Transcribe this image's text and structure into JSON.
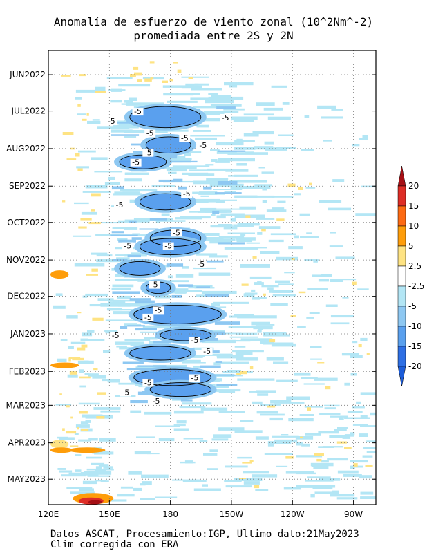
{
  "title_line1": "Anomalía de esfuerzo de viento zonal (10^2Nm^-2)",
  "title_line2": "promediada entre 2S y 2N",
  "footer_line1": "Datos ASCAT, Procesamiento:IGP, Ultimo dato:21May2023",
  "footer_line2": "Clim corregida con ERA",
  "chart_data": {
    "type": "heatmap",
    "x_ticks": [
      "120E",
      "150E",
      "180",
      "150W",
      "120W",
      "90W"
    ],
    "x_tick_lon": [
      120,
      150,
      180,
      210,
      240,
      270
    ],
    "xlim": [
      120,
      281
    ],
    "y_ticks": [
      "JUN2022",
      "JUL2022",
      "AUG2022",
      "SEP2022",
      "OCT2022",
      "NOV2022",
      "DEC2022",
      "JAN2023",
      "FEB2023",
      "MAR2023",
      "APR2023",
      "MAY2023"
    ],
    "y_tick_day": [
      20,
      50,
      81,
      112,
      142,
      173,
      203,
      234,
      265,
      293,
      324,
      354
    ],
    "ylim": [
      0,
      375
    ],
    "grid": true,
    "contour_level": -5,
    "contour_labels": [
      {
        "text": "-5",
        "lon": 164,
        "day": 52
      },
      {
        "text": "-5",
        "lon": 151,
        "day": 60
      },
      {
        "text": "-5",
        "lon": 207,
        "day": 57
      },
      {
        "text": "-5",
        "lon": 170,
        "day": 70
      },
      {
        "text": "-5",
        "lon": 187,
        "day": 74
      },
      {
        "text": "-5",
        "lon": 196,
        "day": 80
      },
      {
        "text": "-5",
        "lon": 169,
        "day": 86
      },
      {
        "text": "-5",
        "lon": 163,
        "day": 94
      },
      {
        "text": "-5",
        "lon": 188,
        "day": 120
      },
      {
        "text": "-5",
        "lon": 155,
        "day": 129
      },
      {
        "text": "-5",
        "lon": 183,
        "day": 152
      },
      {
        "text": "-5",
        "lon": 159,
        "day": 163
      },
      {
        "text": "-5",
        "lon": 179,
        "day": 163
      },
      {
        "text": "-5",
        "lon": 195,
        "day": 178
      },
      {
        "text": "-5",
        "lon": 172,
        "day": 195
      },
      {
        "text": "-5",
        "lon": 174,
        "day": 216
      },
      {
        "text": "-5",
        "lon": 169,
        "day": 222
      },
      {
        "text": "-5",
        "lon": 153,
        "day": 237
      },
      {
        "text": "-5",
        "lon": 192,
        "day": 241
      },
      {
        "text": "-5",
        "lon": 198,
        "day": 250
      },
      {
        "text": "-5",
        "lon": 169,
        "day": 276
      },
      {
        "text": "-5",
        "lon": 192,
        "day": 272
      },
      {
        "text": "-5",
        "lon": 158,
        "day": 284
      },
      {
        "text": "-5",
        "lon": 173,
        "day": 291
      }
    ],
    "colorbar": {
      "labels": [
        "20",
        "15",
        "10",
        "5",
        "2.5",
        "-2.5",
        "-5",
        "-10",
        "-15",
        "-20"
      ],
      "colors": [
        "#a50f15",
        "#de2d26",
        "#fd6a13",
        "#fe9d0a",
        "#fee383",
        "#ffffff",
        "#b3e6f5",
        "#8ec8f2",
        "#5aa0ee",
        "#2e6fe4",
        "#1c5cd8"
      ]
    },
    "fields": {
      "neg_light": "#b3e6f5",
      "neg_mid": "#8ec8f2",
      "neg_strong": "#5aa0ee",
      "pos_light": "#fee383",
      "pos_mid": "#fe9d0a",
      "pos_strong": "#de2d26",
      "pos_max": "#a50f15"
    }
  }
}
